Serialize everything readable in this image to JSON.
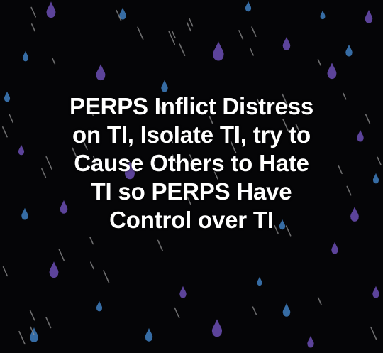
{
  "background": {
    "color": "#050507",
    "pattern": "rain-drops",
    "drop_colors": [
      "#6c4fb4",
      "#3f7fbf",
      "#9a9a9a"
    ]
  },
  "caption": {
    "lines": [
      "PERPS Inflict Distress",
      "on TI, Isolate TI, try to",
      "Cause Others to Hate",
      "TI so PERPS Have",
      "Control over TI"
    ],
    "color": "#ffffff"
  }
}
